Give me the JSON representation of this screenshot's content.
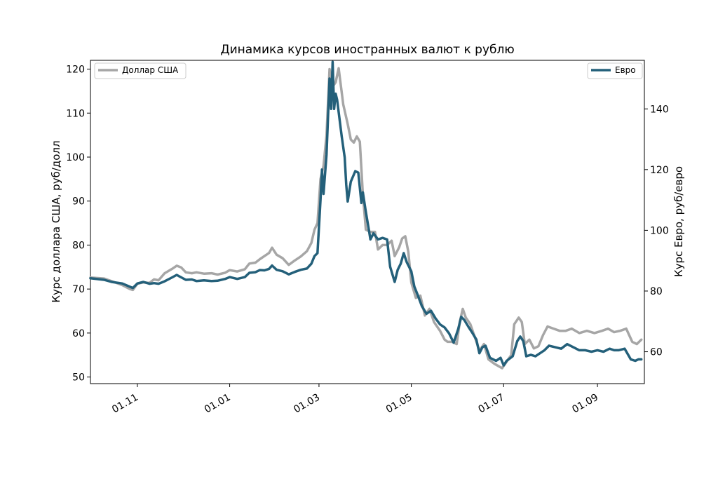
{
  "chart_data": {
    "type": "line",
    "title": "Динамика курсов иностранных валют к рублю",
    "x_axis": {
      "ticks": [
        "01.11",
        "01.01",
        "01.03",
        "01.05",
        "01.07",
        "01.09"
      ],
      "range": [
        "2021-10-01",
        "2022-10-02"
      ]
    },
    "y_left": {
      "label": "Курс доллара США, руб/долл",
      "ylim": [
        48.5,
        122
      ],
      "ticks": [
        50,
        60,
        70,
        80,
        90,
        100,
        110,
        120
      ]
    },
    "y_right": {
      "label": "Курс Евро, руб/евро",
      "ylim": [
        49.5,
        156
      ],
      "ticks": [
        60,
        80,
        100,
        120,
        140
      ]
    },
    "grid": false,
    "series": [
      {
        "name": "Доллар США",
        "axis": "left",
        "color": "#a6a6a6",
        "legend_position": "upper-left",
        "points": [
          [
            "2021-10-01",
            72.6
          ],
          [
            "2021-10-10",
            72.4
          ],
          [
            "2021-10-15",
            71.8
          ],
          [
            "2021-10-22",
            70.9
          ],
          [
            "2021-10-27",
            70.0
          ],
          [
            "2021-10-29",
            69.8
          ],
          [
            "2021-11-01",
            71.2
          ],
          [
            "2021-11-05",
            71.5
          ],
          [
            "2021-11-09",
            71.4
          ],
          [
            "2021-11-12",
            72.2
          ],
          [
            "2021-11-15",
            72.0
          ],
          [
            "2021-11-19",
            73.6
          ],
          [
            "2021-11-24",
            74.6
          ],
          [
            "2021-11-27",
            75.3
          ],
          [
            "2021-11-30",
            74.9
          ],
          [
            "2021-12-03",
            73.8
          ],
          [
            "2021-12-07",
            73.6
          ],
          [
            "2021-12-10",
            73.8
          ],
          [
            "2021-12-15",
            73.5
          ],
          [
            "2021-12-20",
            73.6
          ],
          [
            "2021-12-24",
            73.3
          ],
          [
            "2021-12-29",
            73.7
          ],
          [
            "2022-01-01",
            74.3
          ],
          [
            "2022-01-06",
            74.0
          ],
          [
            "2022-01-11",
            74.5
          ],
          [
            "2022-01-14",
            75.8
          ],
          [
            "2022-01-18",
            76.0
          ],
          [
            "2022-01-21",
            76.8
          ],
          [
            "2022-01-24",
            77.5
          ],
          [
            "2022-01-27",
            78.2
          ],
          [
            "2022-01-29",
            79.4
          ],
          [
            "2022-02-01",
            77.8
          ],
          [
            "2022-02-05",
            77.0
          ],
          [
            "2022-02-09",
            75.5
          ],
          [
            "2022-02-13",
            76.5
          ],
          [
            "2022-02-17",
            77.4
          ],
          [
            "2022-02-21",
            78.6
          ],
          [
            "2022-02-24",
            80.5
          ],
          [
            "2022-02-26",
            83.5
          ],
          [
            "2022-02-28",
            85.0
          ],
          [
            "2022-03-02",
            95.0
          ],
          [
            "2022-03-04",
            98.0
          ],
          [
            "2022-03-06",
            105.0
          ],
          [
            "2022-03-08",
            120.0
          ],
          [
            "2022-03-10",
            116.0
          ],
          [
            "2022-03-12",
            117.0
          ],
          [
            "2022-03-14",
            120.2
          ],
          [
            "2022-03-17",
            112.0
          ],
          [
            "2022-03-20",
            107.5
          ],
          [
            "2022-03-22",
            104.0
          ],
          [
            "2022-03-24",
            103.3
          ],
          [
            "2022-03-26",
            104.7
          ],
          [
            "2022-03-28",
            103.5
          ],
          [
            "2022-03-30",
            91.5
          ],
          [
            "2022-04-01",
            83.5
          ],
          [
            "2022-04-04",
            83.0
          ],
          [
            "2022-04-07",
            83.0
          ],
          [
            "2022-04-09",
            79.0
          ],
          [
            "2022-04-12",
            80.0
          ],
          [
            "2022-04-15",
            80.0
          ],
          [
            "2022-04-18",
            81.0
          ],
          [
            "2022-04-20",
            77.5
          ],
          [
            "2022-04-23",
            79.5
          ],
          [
            "2022-04-25",
            81.5
          ],
          [
            "2022-04-27",
            82.0
          ],
          [
            "2022-04-29",
            78.5
          ],
          [
            "2022-05-01",
            71.5
          ],
          [
            "2022-05-04",
            68.0
          ],
          [
            "2022-05-07",
            68.5
          ],
          [
            "2022-05-10",
            64.0
          ],
          [
            "2022-05-13",
            65.5
          ],
          [
            "2022-05-16",
            62.5
          ],
          [
            "2022-05-20",
            60.5
          ],
          [
            "2022-05-23",
            58.5
          ],
          [
            "2022-05-25",
            58.0
          ],
          [
            "2022-05-28",
            58.0
          ],
          [
            "2022-05-31",
            57.5
          ],
          [
            "2022-06-02",
            62.5
          ],
          [
            "2022-06-04",
            65.5
          ],
          [
            "2022-06-06",
            63.5
          ],
          [
            "2022-06-09",
            62.0
          ],
          [
            "2022-06-12",
            59.0
          ],
          [
            "2022-06-15",
            56.0
          ],
          [
            "2022-06-18",
            57.5
          ],
          [
            "2022-06-21",
            54.0
          ],
          [
            "2022-06-25",
            53.0
          ],
          [
            "2022-06-30",
            52.0
          ],
          [
            "2022-07-03",
            53.5
          ],
          [
            "2022-07-06",
            55.0
          ],
          [
            "2022-07-08",
            62.0
          ],
          [
            "2022-07-11",
            63.5
          ],
          [
            "2022-07-13",
            62.5
          ],
          [
            "2022-07-15",
            57.5
          ],
          [
            "2022-07-18",
            58.5
          ],
          [
            "2022-07-21",
            56.5
          ],
          [
            "2022-07-24",
            57.0
          ],
          [
            "2022-07-27",
            59.5
          ],
          [
            "2022-07-30",
            61.5
          ],
          [
            "2022-08-03",
            61.0
          ],
          [
            "2022-08-07",
            60.5
          ],
          [
            "2022-08-11",
            60.5
          ],
          [
            "2022-08-15",
            61.0
          ],
          [
            "2022-08-20",
            60.0
          ],
          [
            "2022-08-25",
            60.5
          ],
          [
            "2022-08-30",
            60.0
          ],
          [
            "2022-09-04",
            60.5
          ],
          [
            "2022-09-08",
            61.0
          ],
          [
            "2022-09-12",
            60.2
          ],
          [
            "2022-09-16",
            60.5
          ],
          [
            "2022-09-20",
            61.0
          ],
          [
            "2022-09-24",
            58.0
          ],
          [
            "2022-09-27",
            57.5
          ],
          [
            "2022-09-30",
            58.5
          ]
        ]
      },
      {
        "name": "Евро",
        "axis": "right",
        "color": "#24607a",
        "legend_position": "upper-right",
        "points": [
          [
            "2021-10-01",
            84.2
          ],
          [
            "2021-10-10",
            83.7
          ],
          [
            "2021-10-15",
            83.0
          ],
          [
            "2021-10-22",
            82.5
          ],
          [
            "2021-10-29",
            81.0
          ],
          [
            "2021-11-01",
            82.5
          ],
          [
            "2021-11-05",
            83.0
          ],
          [
            "2021-11-09",
            82.4
          ],
          [
            "2021-11-12",
            82.6
          ],
          [
            "2021-11-15",
            82.4
          ],
          [
            "2021-11-19",
            83.2
          ],
          [
            "2021-11-24",
            84.5
          ],
          [
            "2021-11-27",
            85.3
          ],
          [
            "2021-11-30",
            84.5
          ],
          [
            "2021-12-03",
            83.7
          ],
          [
            "2021-12-07",
            83.8
          ],
          [
            "2021-12-10",
            83.3
          ],
          [
            "2021-12-15",
            83.5
          ],
          [
            "2021-12-20",
            83.3
          ],
          [
            "2021-12-24",
            83.4
          ],
          [
            "2021-12-29",
            84.0
          ],
          [
            "2022-01-01",
            84.6
          ],
          [
            "2022-01-06",
            84.0
          ],
          [
            "2022-01-11",
            84.6
          ],
          [
            "2022-01-14",
            86.0
          ],
          [
            "2022-01-18",
            86.2
          ],
          [
            "2022-01-21",
            86.9
          ],
          [
            "2022-01-24",
            86.8
          ],
          [
            "2022-01-27",
            87.3
          ],
          [
            "2022-01-29",
            88.4
          ],
          [
            "2022-02-01",
            87.0
          ],
          [
            "2022-02-05",
            86.5
          ],
          [
            "2022-02-09",
            85.5
          ],
          [
            "2022-02-13",
            86.3
          ],
          [
            "2022-02-17",
            87.0
          ],
          [
            "2022-02-21",
            87.4
          ],
          [
            "2022-02-24",
            89.0
          ],
          [
            "2022-02-26",
            91.5
          ],
          [
            "2022-02-28",
            92.5
          ],
          [
            "2022-03-02",
            110.0
          ],
          [
            "2022-03-03",
            120.0
          ],
          [
            "2022-03-04",
            112.0
          ],
          [
            "2022-03-06",
            125.0
          ],
          [
            "2022-03-08",
            150.0
          ],
          [
            "2022-03-09",
            140.0
          ],
          [
            "2022-03-10",
            155.5
          ],
          [
            "2022-03-11",
            140.0
          ],
          [
            "2022-03-12",
            145.0
          ],
          [
            "2022-03-13",
            143.0
          ],
          [
            "2022-03-16",
            131.0
          ],
          [
            "2022-03-18",
            124.0
          ],
          [
            "2022-03-19",
            115.0
          ],
          [
            "2022-03-20",
            109.5
          ],
          [
            "2022-03-22",
            116.0
          ],
          [
            "2022-03-25",
            119.5
          ],
          [
            "2022-03-27",
            119.0
          ],
          [
            "2022-03-29",
            109.0
          ],
          [
            "2022-03-30",
            112.5
          ],
          [
            "2022-04-01",
            106.0
          ],
          [
            "2022-04-03",
            100.0
          ],
          [
            "2022-04-04",
            97.0
          ],
          [
            "2022-04-06",
            99.0
          ],
          [
            "2022-04-09",
            97.0
          ],
          [
            "2022-04-12",
            97.5
          ],
          [
            "2022-04-15",
            97.0
          ],
          [
            "2022-04-17",
            88.0
          ],
          [
            "2022-04-20",
            83.0
          ],
          [
            "2022-04-22",
            87.0
          ],
          [
            "2022-04-24",
            89.0
          ],
          [
            "2022-04-26",
            92.5
          ],
          [
            "2022-04-28",
            89.5
          ],
          [
            "2022-05-01",
            86.5
          ],
          [
            "2022-05-03",
            81.5
          ],
          [
            "2022-05-05",
            79.0
          ],
          [
            "2022-05-08",
            75.0
          ],
          [
            "2022-05-11",
            72.5
          ],
          [
            "2022-05-14",
            73.5
          ],
          [
            "2022-05-17",
            71.0
          ],
          [
            "2022-05-20",
            69.0
          ],
          [
            "2022-05-23",
            68.0
          ],
          [
            "2022-05-26",
            66.0
          ],
          [
            "2022-05-29",
            63.0
          ],
          [
            "2022-06-01",
            67.5
          ],
          [
            "2022-06-03",
            71.5
          ],
          [
            "2022-06-05",
            70.5
          ],
          [
            "2022-06-08",
            68.0
          ],
          [
            "2022-06-10",
            66.5
          ],
          [
            "2022-06-13",
            64.0
          ],
          [
            "2022-06-15",
            59.5
          ],
          [
            "2022-06-17",
            61.5
          ],
          [
            "2022-06-19",
            62.0
          ],
          [
            "2022-06-22",
            58.0
          ],
          [
            "2022-06-26",
            57.0
          ],
          [
            "2022-06-29",
            58.0
          ],
          [
            "2022-07-01",
            55.5
          ],
          [
            "2022-07-03",
            57.0
          ],
          [
            "2022-07-07",
            58.5
          ],
          [
            "2022-07-10",
            63.5
          ],
          [
            "2022-07-12",
            65.0
          ],
          [
            "2022-07-14",
            63.5
          ],
          [
            "2022-07-16",
            58.5
          ],
          [
            "2022-07-19",
            59.0
          ],
          [
            "2022-07-22",
            58.5
          ],
          [
            "2022-07-25",
            59.5
          ],
          [
            "2022-07-28",
            60.5
          ],
          [
            "2022-07-31",
            62.0
          ],
          [
            "2022-08-04",
            61.5
          ],
          [
            "2022-08-08",
            61.0
          ],
          [
            "2022-08-12",
            62.5
          ],
          [
            "2022-08-16",
            61.5
          ],
          [
            "2022-08-20",
            60.5
          ],
          [
            "2022-08-24",
            60.5
          ],
          [
            "2022-08-28",
            60.0
          ],
          [
            "2022-09-01",
            60.5
          ],
          [
            "2022-09-05",
            60.0
          ],
          [
            "2022-09-09",
            61.0
          ],
          [
            "2022-09-12",
            60.5
          ],
          [
            "2022-09-15",
            60.5
          ],
          [
            "2022-09-19",
            61.0
          ],
          [
            "2022-09-23",
            57.5
          ],
          [
            "2022-09-26",
            57.0
          ],
          [
            "2022-09-28",
            57.5
          ],
          [
            "2022-09-30",
            57.5
          ]
        ]
      }
    ]
  }
}
